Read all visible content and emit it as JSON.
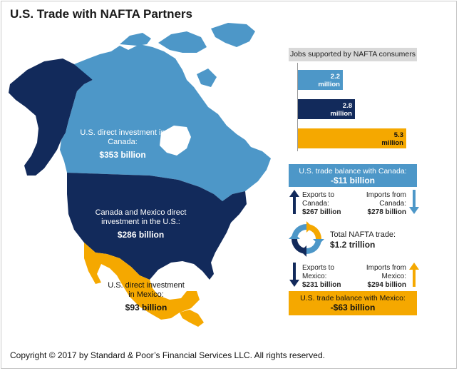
{
  "title": "U.S. Trade with NAFTA Partners",
  "colors": {
    "canada": "#4d97c8",
    "us": "#122a5b",
    "mexico": "#f5a800",
    "alaska": "#122a5b",
    "header_gray": "#d9d9d9"
  },
  "map_labels": {
    "canada": {
      "text": "U.S. direct investment in Canada:",
      "amount": "$353 billion"
    },
    "us": {
      "text": "Canada and Mexico direct investment in the U.S.:",
      "amount": "$286 billion"
    },
    "mexico": {
      "text": "U.S. direct investment in Mexico:",
      "amount": "$93 billion"
    }
  },
  "chart_data": {
    "type": "bar",
    "title": "Jobs supported by NAFTA consumers",
    "orientation": "horizontal",
    "units": "million",
    "bars": [
      {
        "value": 2.2,
        "label": "2.2 million",
        "color": "#4d97c8"
      },
      {
        "value": 2.8,
        "label": "2.8 million",
        "color": "#122a5b"
      },
      {
        "value": 5.3,
        "label": "5.3 million",
        "color": "#f5a800"
      }
    ],
    "xlim": [
      0,
      5.8
    ],
    "grid": false
  },
  "canada_trade": {
    "balance_label": "U.S. trade balance with Canada:",
    "balance_value": "-$11 billion",
    "exports_label": "Exports to Canada:",
    "exports_value": "$267 billion",
    "imports_label": "Imports from Canada:",
    "imports_value": "$278 billion"
  },
  "total_trade": {
    "label": "Total NAFTA trade:",
    "value": "$1.2 trillion"
  },
  "mexico_trade": {
    "exports_label": "Exports to Mexico:",
    "exports_value": "$231 billion",
    "imports_label": "Imports from Mexico:",
    "imports_value": "$294 billion",
    "balance_label": "U.S. trade balance with Mexico:",
    "balance_value": "-$63 billion"
  },
  "copyright": "Copyright © 2017 by Standard & Poor’s Financial Services LLC. All rights reserved."
}
